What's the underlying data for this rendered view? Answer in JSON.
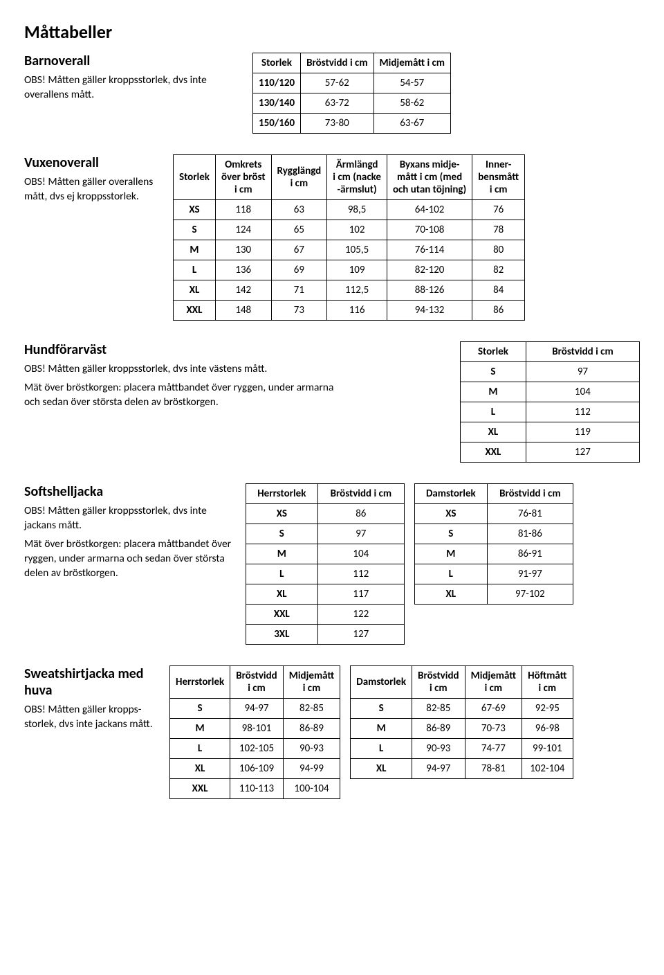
{
  "page_title": "Måttabeller",
  "sections": {
    "barnoverall": {
      "title": "Barnoverall",
      "note": "OBS! Måtten gäller kroppsstorlek, dvs inte overallens mått.",
      "table": {
        "columns": [
          "Storlek",
          "Bröstvidd i cm",
          "Midjemått i cm"
        ],
        "rows": [
          [
            "110/120",
            "57-62",
            "54-57"
          ],
          [
            "130/140",
            "63-72",
            "58-62"
          ],
          [
            "150/160",
            "73-80",
            "63-67"
          ]
        ]
      }
    },
    "vuxenoverall": {
      "title": "Vuxenoverall",
      "note": "OBS! Måtten gäller overallens mått, dvs ej kroppsstorlek.",
      "table": {
        "columns": [
          "Storlek",
          "Omkrets över bröst i cm",
          "Rygglängd i cm",
          "Ärmlängd i cm (nacke -ärmslut)",
          "Byxans midje- mått i cm (med och utan töjning)",
          "Inner- bensmått i cm"
        ],
        "rows": [
          [
            "XS",
            "118",
            "63",
            "98,5",
            "64-102",
            "76"
          ],
          [
            "S",
            "124",
            "65",
            "102",
            "70-108",
            "78"
          ],
          [
            "M",
            "130",
            "67",
            "105,5",
            "76-114",
            "80"
          ],
          [
            "L",
            "136",
            "69",
            "109",
            "82-120",
            "82"
          ],
          [
            "XL",
            "142",
            "71",
            "112,5",
            "88-126",
            "84"
          ],
          [
            "XXL",
            "148",
            "73",
            "116",
            "94-132",
            "86"
          ]
        ]
      }
    },
    "hundforarvast": {
      "title": "Hundförarväst",
      "note1": "OBS! Måtten gäller kroppsstorlek, dvs inte västens mått.",
      "note2": "Mät över bröstkorgen: placera måttbandet över ryggen, under armarna och sedan över största delen av bröstkorgen.",
      "table": {
        "columns": [
          "Storlek",
          "Bröstvidd i cm"
        ],
        "rows": [
          [
            "S",
            "97"
          ],
          [
            "M",
            "104"
          ],
          [
            "L",
            "112"
          ],
          [
            "XL",
            "119"
          ],
          [
            "XXL",
            "127"
          ]
        ]
      }
    },
    "softshell": {
      "title": "Softshelljacka",
      "note1": "OBS! Måtten gäller kroppsstorlek, dvs inte jackans mått.",
      "note2": "Mät över bröstkorgen: placera måttbandet över ryggen, under armarna och sedan över största delen av bröstkorgen.",
      "herr_table": {
        "columns": [
          "Herrstorlek",
          "Bröstvidd i cm"
        ],
        "rows": [
          [
            "XS",
            "86"
          ],
          [
            "S",
            "97"
          ],
          [
            "M",
            "104"
          ],
          [
            "L",
            "112"
          ],
          [
            "XL",
            "117"
          ],
          [
            "XXL",
            "122"
          ],
          [
            "3XL",
            "127"
          ]
        ]
      },
      "dam_table": {
        "columns": [
          "Damstorlek",
          "Bröstvidd i cm"
        ],
        "rows": [
          [
            "XS",
            "76-81"
          ],
          [
            "S",
            "81-86"
          ],
          [
            "M",
            "86-91"
          ],
          [
            "L",
            "91-97"
          ],
          [
            "XL",
            "97-102"
          ]
        ]
      }
    },
    "sweatshirt": {
      "title": "Sweatshirtjacka med huva",
      "note": "OBS! Måtten gäller kropps- storlek, dvs inte jackans mått.",
      "herr_table": {
        "columns": [
          "Herrstorlek",
          "Bröstvidd i cm",
          "Midjemått i cm"
        ],
        "rows": [
          [
            "S",
            "94-97",
            "82-85"
          ],
          [
            "M",
            "98-101",
            "86-89"
          ],
          [
            "L",
            "102-105",
            "90-93"
          ],
          [
            "XL",
            "106-109",
            "94-99"
          ],
          [
            "XXL",
            "110-113",
            "100-104"
          ]
        ]
      },
      "dam_table": {
        "columns": [
          "Damstorlek",
          "Bröstvidd i cm",
          "Midjemått i cm",
          "Höftmått i cm"
        ],
        "rows": [
          [
            "S",
            "82-85",
            "67-69",
            "92-95"
          ],
          [
            "M",
            "86-89",
            "70-73",
            "96-98"
          ],
          [
            "L",
            "90-93",
            "74-77",
            "99-101"
          ],
          [
            "XL",
            "94-97",
            "78-81",
            "102-104"
          ]
        ]
      }
    }
  }
}
